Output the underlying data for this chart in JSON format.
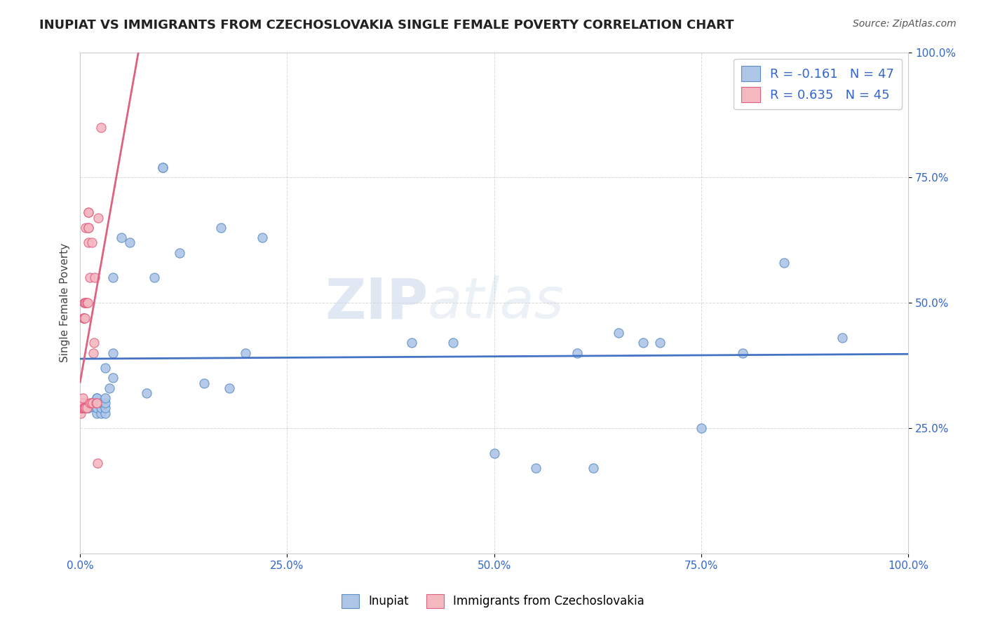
{
  "title": "INUPIAT VS IMMIGRANTS FROM CZECHOSLOVAKIA SINGLE FEMALE POVERTY CORRELATION CHART",
  "source": "Source: ZipAtlas.com",
  "ylabel": "Single Female Poverty",
  "watermark_zip": "ZIP",
  "watermark_atlas": "atlas",
  "xlim": [
    0,
    1.0
  ],
  "ylim": [
    0,
    1.0
  ],
  "xtick_vals": [
    0.0,
    0.25,
    0.5,
    0.75,
    1.0
  ],
  "xtick_labels": [
    "0.0%",
    "25.0%",
    "50.0%",
    "75.0%",
    "100.0%"
  ],
  "ytick_vals": [
    0.25,
    0.5,
    0.75,
    1.0
  ],
  "ytick_labels": [
    "25.0%",
    "50.0%",
    "75.0%",
    "100.0%"
  ],
  "legend_entries": [
    {
      "label": "Inupiat",
      "color": "#aec6e8"
    },
    {
      "label": "Immigrants from Czechoslovakia",
      "color": "#f4b8c1"
    }
  ],
  "R_inupiat": -0.161,
  "N_inupiat": 47,
  "R_czech": 0.635,
  "N_czech": 45,
  "blue_line_color": "#4472c4",
  "pink_line_color": "#e06080",
  "scatter_blue_face": "#aec6e8",
  "scatter_blue_edge": "#5b8ec4",
  "scatter_pink_face": "#f4b8c1",
  "scatter_pink_edge": "#e06080",
  "inupiat_x": [
    0.005,
    0.01,
    0.01,
    0.015,
    0.02,
    0.02,
    0.02,
    0.02,
    0.02,
    0.02,
    0.025,
    0.025,
    0.025,
    0.03,
    0.03,
    0.03,
    0.03,
    0.03,
    0.035,
    0.04,
    0.04,
    0.04,
    0.05,
    0.06,
    0.08,
    0.09,
    0.1,
    0.1,
    0.12,
    0.15,
    0.17,
    0.18,
    0.2,
    0.22,
    0.4,
    0.45,
    0.5,
    0.55,
    0.6,
    0.62,
    0.65,
    0.68,
    0.7,
    0.75,
    0.8,
    0.85,
    0.92
  ],
  "inupiat_y": [
    0.3,
    0.29,
    0.29,
    0.3,
    0.28,
    0.29,
    0.3,
    0.3,
    0.31,
    0.31,
    0.28,
    0.29,
    0.3,
    0.28,
    0.29,
    0.3,
    0.31,
    0.37,
    0.33,
    0.35,
    0.4,
    0.55,
    0.63,
    0.62,
    0.32,
    0.55,
    0.77,
    0.77,
    0.6,
    0.34,
    0.65,
    0.33,
    0.4,
    0.63,
    0.42,
    0.42,
    0.2,
    0.17,
    0.4,
    0.17,
    0.44,
    0.42,
    0.42,
    0.25,
    0.4,
    0.58,
    0.43
  ],
  "czech_x": [
    0.001,
    0.001,
    0.002,
    0.002,
    0.002,
    0.002,
    0.002,
    0.003,
    0.003,
    0.003,
    0.003,
    0.003,
    0.004,
    0.004,
    0.004,
    0.005,
    0.005,
    0.005,
    0.006,
    0.006,
    0.006,
    0.007,
    0.007,
    0.007,
    0.008,
    0.008,
    0.009,
    0.01,
    0.01,
    0.01,
    0.01,
    0.01,
    0.012,
    0.012,
    0.013,
    0.014,
    0.015,
    0.016,
    0.017,
    0.018,
    0.019,
    0.02,
    0.021,
    0.022,
    0.025
  ],
  "czech_y": [
    0.28,
    0.29,
    0.29,
    0.29,
    0.3,
    0.3,
    0.3,
    0.29,
    0.29,
    0.3,
    0.3,
    0.31,
    0.29,
    0.47,
    0.47,
    0.29,
    0.47,
    0.5,
    0.29,
    0.47,
    0.5,
    0.29,
    0.5,
    0.65,
    0.29,
    0.5,
    0.5,
    0.62,
    0.65,
    0.65,
    0.68,
    0.68,
    0.3,
    0.55,
    0.3,
    0.62,
    0.3,
    0.4,
    0.42,
    0.55,
    0.3,
    0.3,
    0.18,
    0.67,
    0.85
  ],
  "grid_color": "#d0d0d0",
  "spine_color": "#cccccc",
  "tick_color": "#3366cc",
  "title_fontsize": 13,
  "source_fontsize": 10,
  "ylabel_fontsize": 11
}
